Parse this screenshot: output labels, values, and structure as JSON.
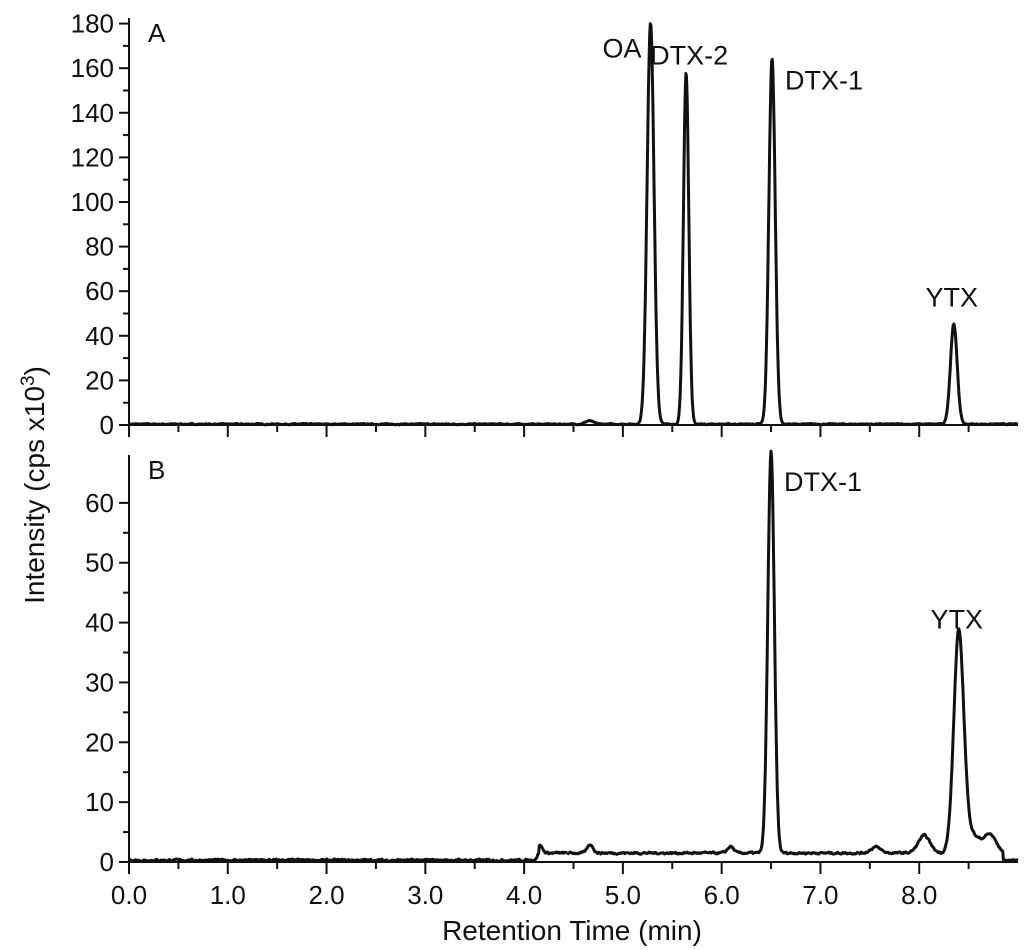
{
  "chart_data": [
    {
      "type": "line",
      "panel": "A",
      "ylabel": "Intensity (cps x10",
      "ylabel_sup": "3",
      "ylabel_close": ")",
      "xlim": [
        0,
        9
      ],
      "ylim": [
        0,
        180
      ],
      "yticks": [
        0,
        20,
        40,
        60,
        80,
        100,
        120,
        140,
        160,
        180
      ],
      "baseline": 0.4,
      "noise": 0.35,
      "peaks": [
        {
          "name": "OA",
          "rt": 5.28,
          "height": 180,
          "width": 0.035
        },
        {
          "name": "DTX-2",
          "rt": 5.64,
          "height": 158,
          "width": 0.027
        },
        {
          "name": "DTX-1",
          "rt": 6.51,
          "height": 164,
          "width": 0.032
        },
        {
          "name": "YTX",
          "rt": 8.35,
          "height": 45,
          "width": 0.034
        }
      ],
      "bumps": [
        {
          "rt": 4.66,
          "height": 1.5,
          "width": 0.04
        }
      ]
    },
    {
      "type": "line",
      "panel": "B",
      "xlabel": "Retention Time (min)",
      "xlim": [
        0,
        9
      ],
      "ylim": [
        0,
        65
      ],
      "xticks": [
        0,
        1,
        2,
        3,
        4,
        5,
        6,
        7,
        8
      ],
      "xtick_labels": [
        "0.0",
        "1.0",
        "2.0",
        "3.0",
        "4.0",
        "5.0",
        "6.0",
        "7.0",
        "8.0"
      ],
      "yticks": [
        0,
        10,
        20,
        30,
        40,
        50,
        60
      ],
      "baseline": 0.3,
      "noise": 0.25,
      "raised_baseline": {
        "from": 4.15,
        "to": 8.85,
        "level": 1.2
      },
      "end_drop": 8.85,
      "peaks": [
        {
          "name": "DTX-1",
          "rt": 6.5,
          "height": 67,
          "width": 0.033
        },
        {
          "name": "YTX",
          "rt": 8.4,
          "height": 36,
          "width": 0.05
        }
      ],
      "bumps": [
        {
          "rt": 4.16,
          "height": 1.3,
          "width": 0.025
        },
        {
          "rt": 4.67,
          "height": 1.4,
          "width": 0.03
        },
        {
          "rt": 6.09,
          "height": 1.1,
          "width": 0.03
        },
        {
          "rt": 7.56,
          "height": 1.0,
          "width": 0.05
        },
        {
          "rt": 8.05,
          "height": 2.9,
          "width": 0.06
        },
        {
          "rt": 8.52,
          "height": 3.2,
          "width": 0.09
        },
        {
          "rt": 8.72,
          "height": 2.9,
          "width": 0.06
        }
      ]
    }
  ]
}
